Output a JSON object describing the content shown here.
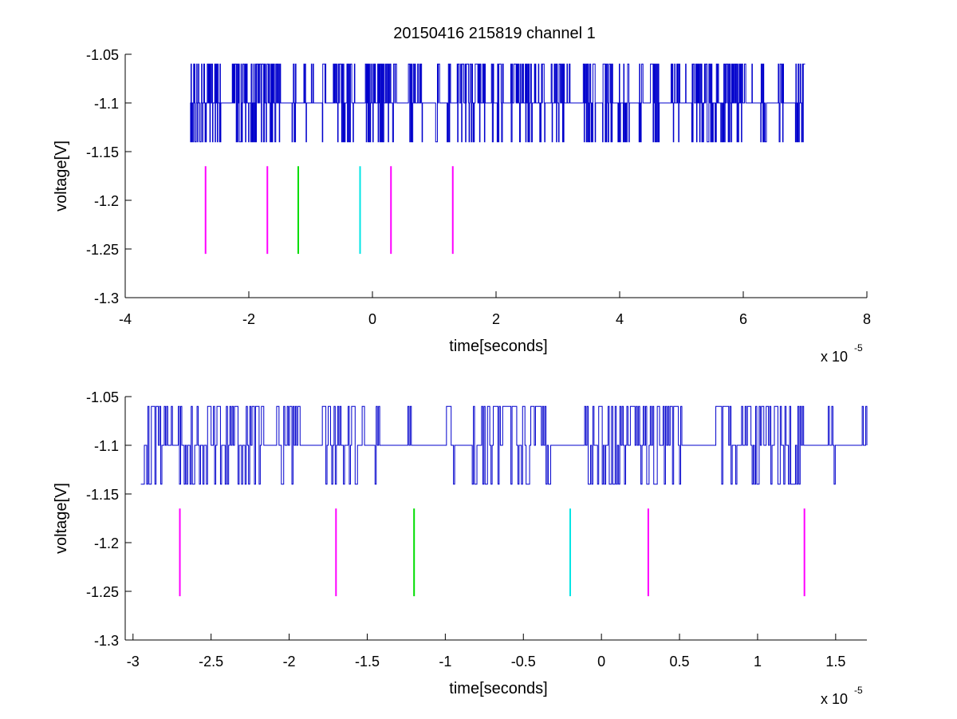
{
  "figure": {
    "title": "20150416 215819 channel 1",
    "background": "#ffffff"
  },
  "chart_data": [
    {
      "type": "line",
      "title": "20150416 215819 channel 1",
      "xlabel": "time[seconds]",
      "ylabel": "voltage[V]",
      "x_multiplier_label": "x 10",
      "x_multiplier_exponent": "-5",
      "xlim": [
        -4,
        8
      ],
      "ylim": [
        -1.3,
        -1.05
      ],
      "xticks": [
        -4,
        -2,
        0,
        2,
        4,
        6,
        8
      ],
      "xtick_labels": [
        "-4",
        "-2",
        "0",
        "2",
        "4",
        "6",
        "8"
      ],
      "yticks": [
        -1.3,
        -1.25,
        -1.2,
        -1.15,
        -1.1,
        -1.05
      ],
      "ytick_labels": [
        "-1.3",
        "-1.25",
        "-1.2",
        "-1.15",
        "-1.1",
        "-1.05"
      ],
      "grid": false,
      "series": [
        {
          "color": "#0000cc",
          "x_range": [
            -2.95,
            7.0
          ],
          "levels": [
            -1.06,
            -1.1,
            -1.14
          ],
          "baseline": -1.1
        }
      ],
      "markers": [
        {
          "x": -2.7,
          "y_range": [
            -1.255,
            -1.165
          ],
          "color": "#ff00ff"
        },
        {
          "x": -1.7,
          "y_range": [
            -1.255,
            -1.165
          ],
          "color": "#ff00ff"
        },
        {
          "x": -1.2,
          "y_range": [
            -1.255,
            -1.165
          ],
          "color": "#00dd00"
        },
        {
          "x": -0.2,
          "y_range": [
            -1.255,
            -1.165
          ],
          "color": "#00e5e5"
        },
        {
          "x": 0.3,
          "y_range": [
            -1.255,
            -1.165
          ],
          "color": "#ff00ff"
        },
        {
          "x": 1.3,
          "y_range": [
            -1.255,
            -1.165
          ],
          "color": "#ff00ff"
        }
      ]
    },
    {
      "type": "line",
      "title": "",
      "xlabel": "time[seconds]",
      "ylabel": "voltage[V]",
      "x_multiplier_label": "x 10",
      "x_multiplier_exponent": "-5",
      "xlim": [
        -3.05,
        1.7
      ],
      "ylim": [
        -1.3,
        -1.05
      ],
      "xticks": [
        -3,
        -2.5,
        -2,
        -1.5,
        -1,
        -0.5,
        0,
        0.5,
        1,
        1.5
      ],
      "xtick_labels": [
        "-3",
        "-2.5",
        "-2",
        "-1.5",
        "-1",
        "-0.5",
        "0",
        "0.5",
        "1",
        "1.5"
      ],
      "yticks": [
        -1.3,
        -1.25,
        -1.2,
        -1.15,
        -1.1,
        -1.05
      ],
      "ytick_labels": [
        "-1.3",
        "-1.25",
        "-1.2",
        "-1.15",
        "-1.1",
        "-1.05"
      ],
      "grid": false,
      "series": [
        {
          "color": "#0000cc",
          "x_range": [
            -2.95,
            1.7
          ],
          "levels": [
            -1.06,
            -1.1,
            -1.14
          ],
          "baseline": -1.1
        }
      ],
      "markers": [
        {
          "x": -2.7,
          "y_range": [
            -1.255,
            -1.165
          ],
          "color": "#ff00ff"
        },
        {
          "x": -1.7,
          "y_range": [
            -1.255,
            -1.165
          ],
          "color": "#ff00ff"
        },
        {
          "x": -1.2,
          "y_range": [
            -1.255,
            -1.165
          ],
          "color": "#00dd00"
        },
        {
          "x": -0.2,
          "y_range": [
            -1.255,
            -1.165
          ],
          "color": "#00e5e5"
        },
        {
          "x": 0.3,
          "y_range": [
            -1.255,
            -1.165
          ],
          "color": "#ff00ff"
        },
        {
          "x": 1.3,
          "y_range": [
            -1.255,
            -1.165
          ],
          "color": "#ff00ff"
        }
      ]
    }
  ]
}
